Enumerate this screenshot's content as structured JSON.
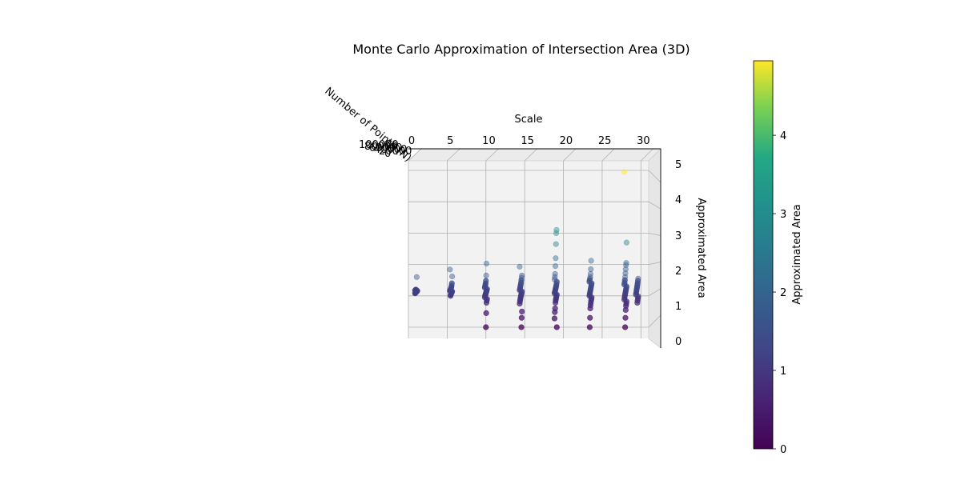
{
  "chart_data": {
    "type": "scatter",
    "projection": "3d",
    "title": "Monte Carlo Approximation of Intersection Area (3D)",
    "xlabel": "Scale",
    "ylabel": "Number of Points (N)",
    "zlabel": "Approximated Area",
    "xlim": [
      0,
      31
    ],
    "zlim": [
      0,
      5.2
    ],
    "x_ticks": [
      "0",
      "5",
      "10",
      "15",
      "20",
      "25",
      "30"
    ],
    "z_ticks": [
      "0",
      "1",
      "2",
      "3",
      "4",
      "5"
    ],
    "y_tick_labels_overlapping": [
      "100000",
      "80000",
      "60000",
      "40000",
      "20000",
      "0"
    ],
    "colormap": "viridis",
    "colorbar": {
      "label": "Approximated Area",
      "range": [
        0,
        4.95
      ],
      "ticks": [
        "0",
        "1",
        "2",
        "3",
        "4"
      ]
    },
    "grid": true,
    "series": [
      {
        "x": 1,
        "values": [
          1.08,
          1.09,
          1.1,
          1.11,
          1.12,
          1.13,
          1.14,
          1.15,
          1.16,
          1.17,
          1.18,
          1.19,
          1.2,
          1.15,
          1.13,
          1.6
        ]
      },
      {
        "x": 5.5,
        "values": [
          1.0,
          1.03,
          1.06,
          1.08,
          1.1,
          1.12,
          1.14,
          1.16,
          1.18,
          1.2,
          1.22,
          1.25,
          1.28,
          1.33,
          1.4,
          1.62,
          1.84
        ]
      },
      {
        "x": 10,
        "values": [
          0.0,
          0.45,
          0.78,
          0.85,
          0.9,
          0.95,
          1.0,
          1.03,
          1.06,
          1.09,
          1.12,
          1.15,
          1.18,
          1.22,
          1.26,
          1.3,
          1.35,
          1.4,
          1.48,
          1.65,
          2.03
        ]
      },
      {
        "x": 14.5,
        "values": [
          0.0,
          0.3,
          0.5,
          0.75,
          0.82,
          0.88,
          0.93,
          0.98,
          1.02,
          1.06,
          1.1,
          1.14,
          1.18,
          1.22,
          1.27,
          1.32,
          1.37,
          1.42,
          1.5,
          1.58,
          1.65,
          1.93
        ]
      },
      {
        "x": 19,
        "values": [
          0.0,
          0.28,
          0.48,
          0.6,
          0.78,
          0.85,
          0.9,
          0.95,
          1.0,
          1.04,
          1.08,
          1.12,
          1.16,
          1.2,
          1.24,
          1.28,
          1.32,
          1.38,
          1.45,
          1.52,
          1.6,
          1.7,
          1.95,
          2.2,
          2.65,
          3.0,
          3.1
        ]
      },
      {
        "x": 23.5,
        "values": [
          0.0,
          0.3,
          0.6,
          0.7,
          0.78,
          0.85,
          0.9,
          0.95,
          1.0,
          1.05,
          1.1,
          1.15,
          1.2,
          1.25,
          1.3,
          1.35,
          1.4,
          1.45,
          1.5,
          1.55,
          1.6,
          1.7,
          1.85,
          2.12
        ]
      },
      {
        "x": 28,
        "values": [
          0.0,
          0.3,
          0.55,
          0.68,
          0.75,
          0.82,
          0.88,
          0.94,
          1.0,
          1.05,
          1.1,
          1.15,
          1.2,
          1.25,
          1.3,
          1.36,
          1.42,
          1.5,
          1.6,
          1.72,
          1.85,
          1.98,
          2.05,
          2.7,
          4.95
        ]
      },
      {
        "x": 29.5,
        "values": [
          0.78,
          0.85,
          0.92,
          0.98,
          1.04,
          1.1,
          1.16,
          1.22,
          1.28,
          1.34,
          1.4,
          1.48,
          1.55
        ]
      }
    ]
  }
}
